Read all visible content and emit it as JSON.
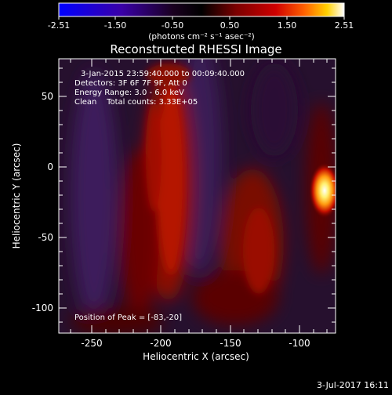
{
  "colorbar": {
    "tick_labels": [
      "-2.51",
      "-1.50",
      "-0.50",
      "0.50",
      "1.50",
      "2.51"
    ],
    "unit_label": "(photons cm⁻² s⁻¹ asec⁻²)",
    "colors": [
      "#0000ff",
      "#3a00a8",
      "#1a0020",
      "#000000",
      "#7a0000",
      "#d00000",
      "#ff6000",
      "#ffd000",
      "#ffffff"
    ]
  },
  "plot": {
    "title": "Reconstructed RHESSI Image",
    "info_lines": [
      "3-Jan-2015 23:59:40.000 to 00:09:40.000",
      "Detectors: 3F 6F 7F 9F, Att 0",
      "Energy Range: 3.0 - 6.0 keV",
      "Clean    Total counts: 3.33E+05"
    ],
    "peak_label": "Position of Peak = [-83,-20]",
    "xlabel": "Heliocentric X (arcsec)",
    "ylabel": "Heliocentric Y (arcsec)",
    "x_ticks": [
      "-250",
      "-200",
      "-150",
      "-100"
    ],
    "y_ticks": [
      "50",
      "0",
      "-50",
      "-100"
    ],
    "x_range": [
      -272,
      -74
    ],
    "y_range": [
      -116,
      82
    ]
  },
  "footer": {
    "timestamp": "3-Jul-2017 16:11"
  }
}
